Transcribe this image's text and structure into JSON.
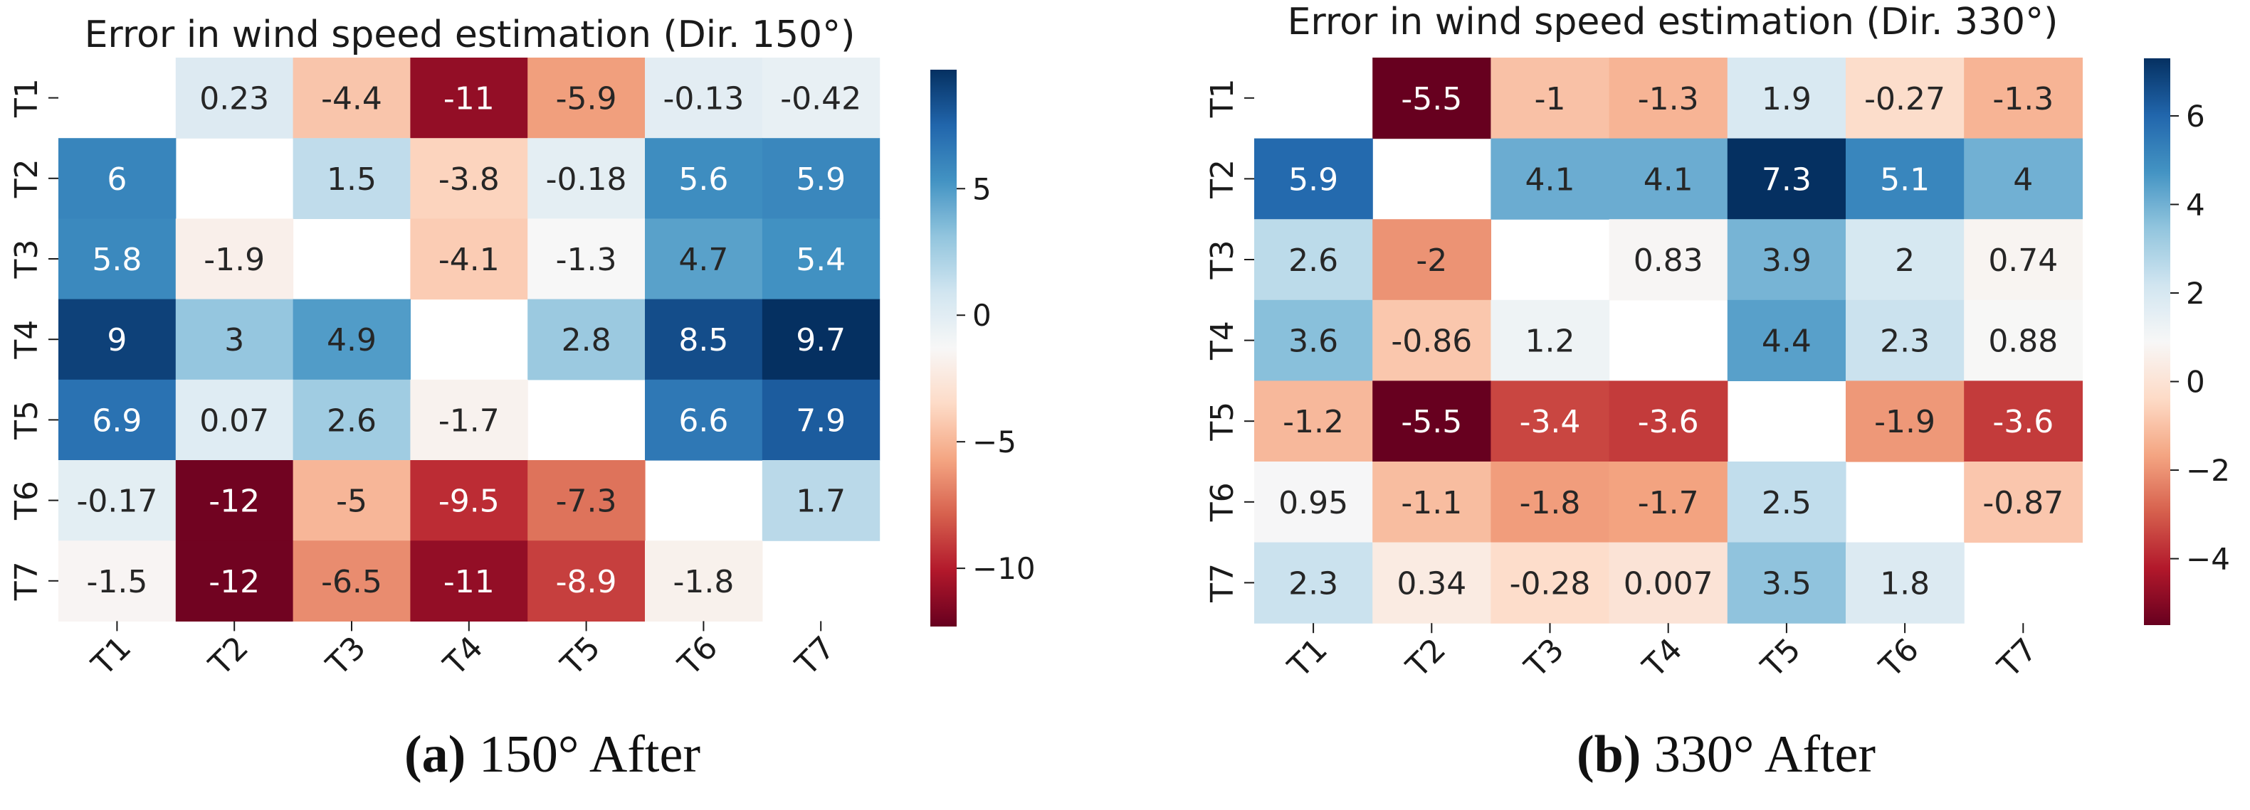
{
  "chart_data": [
    {
      "type": "heatmap",
      "title": "Error in wind speed estimation (Dir. 150°)",
      "caption_label": "(a)",
      "caption_text": "150° After",
      "x_categories": [
        "T1",
        "T2",
        "T3",
        "T4",
        "T5",
        "T6",
        "T7"
      ],
      "y_categories": [
        "T1",
        "T2",
        "T3",
        "T4",
        "T5",
        "T6",
        "T7"
      ],
      "values": [
        [
          null,
          0.23,
          -4.4,
          -11,
          -5.9,
          -0.13,
          -0.42
        ],
        [
          6,
          null,
          1.5,
          -3.8,
          -0.18,
          5.6,
          5.9
        ],
        [
          5.8,
          -1.9,
          null,
          -4.1,
          -1.3,
          4.7,
          5.4
        ],
        [
          9,
          3,
          4.9,
          null,
          2.8,
          8.5,
          9.7
        ],
        [
          6.9,
          0.07,
          2.6,
          -1.7,
          null,
          6.6,
          7.9
        ],
        [
          -0.17,
          -12,
          -5,
          -9.5,
          -7.3,
          null,
          1.7
        ],
        [
          -1.5,
          -12,
          -6.5,
          -11,
          -8.9,
          -1.8,
          null
        ]
      ],
      "labels": [
        [
          "",
          "0.23",
          "-4.4",
          "-11",
          "-5.9",
          "-0.13",
          "-0.42"
        ],
        [
          "6",
          "",
          "1.5",
          "-3.8",
          "-0.18",
          "5.6",
          "5.9"
        ],
        [
          "5.8",
          "-1.9",
          "",
          "-4.1",
          "-1.3",
          "4.7",
          "5.4"
        ],
        [
          "9",
          "3",
          "4.9",
          "",
          "2.8",
          "8.5",
          "9.7"
        ],
        [
          "6.9",
          "0.07",
          "2.6",
          "-1.7",
          "",
          "6.6",
          "7.9"
        ],
        [
          "-0.17",
          "-12",
          "-5",
          "-9.5",
          "-7.3",
          "",
          "1.7"
        ],
        [
          "-1.5",
          "-12",
          "-6.5",
          "-11",
          "-8.9",
          "-1.8",
          ""
        ]
      ],
      "colorscale": "RdBu",
      "vmin": -12.3,
      "vmax": 9.7,
      "colorbar_ticks": [
        5,
        0,
        -5,
        -10
      ],
      "colorbar_tick_labels": [
        "5",
        "0",
        "−5",
        "−10"
      ]
    },
    {
      "type": "heatmap",
      "title": "Error in wind speed estimation (Dir. 330°)",
      "caption_label": "(b)",
      "caption_text": "330° After",
      "x_categories": [
        "T1",
        "T2",
        "T3",
        "T4",
        "T5",
        "T6",
        "T7"
      ],
      "y_categories": [
        "T1",
        "T2",
        "T3",
        "T4",
        "T5",
        "T6",
        "T7"
      ],
      "values": [
        [
          null,
          -5.5,
          -1,
          -1.3,
          1.9,
          -0.27,
          -1.3
        ],
        [
          5.9,
          null,
          4.1,
          4.1,
          7.3,
          5.1,
          4
        ],
        [
          2.6,
          -2,
          null,
          0.83,
          3.9,
          2,
          0.74
        ],
        [
          3.6,
          -0.86,
          1.2,
          null,
          4.4,
          2.3,
          0.88
        ],
        [
          -1.2,
          -5.5,
          -3.4,
          -3.6,
          null,
          -1.9,
          -3.6
        ],
        [
          0.95,
          -1.1,
          -1.8,
          -1.7,
          2.5,
          null,
          -0.87
        ],
        [
          2.3,
          0.34,
          -0.28,
          0.007,
          3.5,
          1.8,
          null
        ]
      ],
      "labels": [
        [
          "",
          "-5.5",
          "-1",
          "-1.3",
          "1.9",
          "-0.27",
          "-1.3"
        ],
        [
          "5.9",
          "",
          "4.1",
          "4.1",
          "7.3",
          "5.1",
          "4"
        ],
        [
          "2.6",
          "-2",
          "",
          "0.83",
          "3.9",
          "2",
          "0.74"
        ],
        [
          "3.6",
          "-0.86",
          "1.2",
          "",
          "4.4",
          "2.3",
          "0.88"
        ],
        [
          "-1.2",
          "-5.5",
          "-3.4",
          "-3.6",
          "",
          "-1.9",
          "-3.6"
        ],
        [
          "0.95",
          "-1.1",
          "-1.8",
          "-1.7",
          "2.5",
          "",
          "-0.87"
        ],
        [
          "2.3",
          "0.34",
          "-0.28",
          "0.007",
          "3.5",
          "1.8",
          ""
        ]
      ],
      "colorscale": "RdBu",
      "vmin": -5.5,
      "vmax": 7.3,
      "colorbar_ticks": [
        6,
        4,
        2,
        0,
        -2,
        -4
      ],
      "colorbar_tick_labels": [
        "6",
        "4",
        "2",
        "0",
        "−2",
        "−4"
      ]
    }
  ]
}
